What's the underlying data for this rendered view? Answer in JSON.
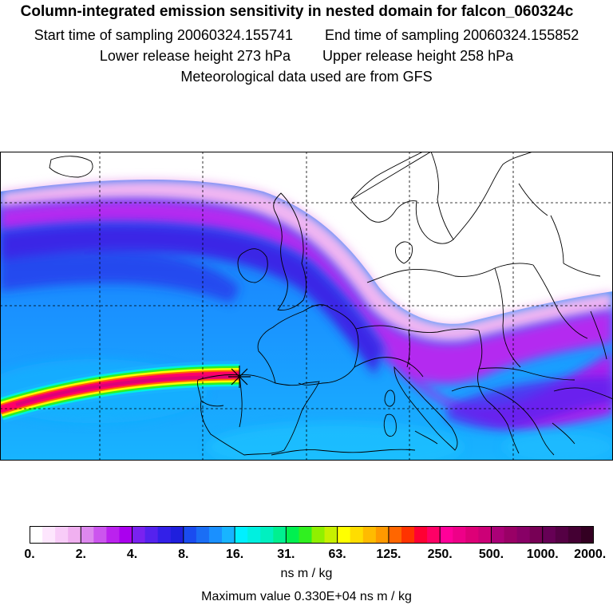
{
  "header": {
    "title": "Column-integrated emission sensitivity in nested domain for falcon_060324c",
    "start_label": "Start time of sampling 20060324.155741",
    "end_label": "End time of sampling 20060324.155852",
    "lower_label": "Lower release height  273 hPa",
    "upper_label": "Upper release height  258 hPa",
    "met_label": "Meteorological data used are from GFS"
  },
  "map": {
    "release_marker_icon": "star-marker-icon",
    "grid": "dashed"
  },
  "colorbar": {
    "tick_labels": [
      "0.",
      "2.",
      "4.",
      "8.",
      "16.",
      "31.",
      "63.",
      "125.",
      "250.",
      "500.",
      "1000.",
      "2000."
    ],
    "colors": [
      "#ffffff",
      "#fde6fd",
      "#f8ccf8",
      "#f0b0f0",
      "#dd88ee",
      "#cc55ee",
      "#bb22ee",
      "#aa00ee",
      "#7a22f0",
      "#5522ee",
      "#3320e8",
      "#1f1fdd",
      "#1a4cf0",
      "#1a6ef5",
      "#1a90ff",
      "#18b4ff",
      "#00f0ff",
      "#00f0e0",
      "#00f0c0",
      "#00f090",
      "#00f050",
      "#30f020",
      "#90f000",
      "#c8f000",
      "#ffff00",
      "#ffdd00",
      "#ffbb00",
      "#ff9900",
      "#ff6600",
      "#ff3300",
      "#ff0033",
      "#ff0066",
      "#ff0099",
      "#ee0088",
      "#dd0077",
      "#cc0077",
      "#aa0077",
      "#990066",
      "#880066",
      "#770055",
      "#660055",
      "#550044",
      "#440033",
      "#330022"
    ],
    "unit": "ns m / kg",
    "max_label": "Maximum value  0.330E+04 ns m / kg"
  }
}
